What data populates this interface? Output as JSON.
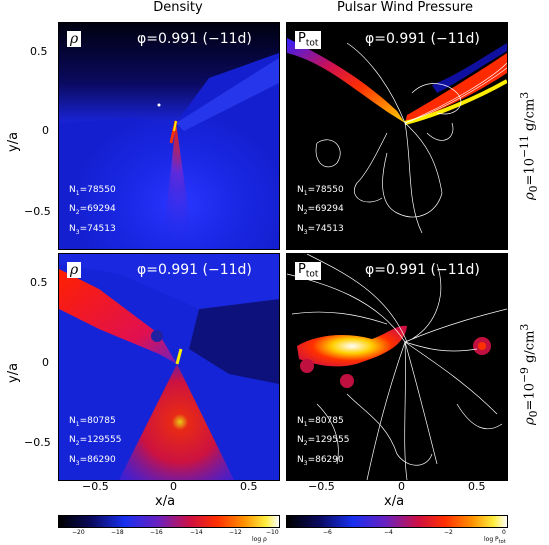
{
  "columns": {
    "left_title": "Density",
    "right_title": "Pulsar Wind Pressure"
  },
  "panels": [
    {
      "label": "ρ",
      "phase": "φ=0.991 (−11d)",
      "n1": "78550",
      "n2": "69294",
      "n3": "74513"
    },
    {
      "label": "P",
      "label_sub": "tot",
      "phase": "φ=0.991 (−11d)",
      "n1": "78550",
      "n2": "69294",
      "n3": "74513"
    },
    {
      "label": "ρ",
      "phase": "φ=0.991 (−11d)",
      "n1": "80785",
      "n2": "129555",
      "n3": "86290"
    },
    {
      "label": "P",
      "label_sub": "tot",
      "phase": "φ=0.991 (−11d)",
      "n1": "80785",
      "n2": "129555",
      "n3": "86290"
    }
  ],
  "row_labels": [
    {
      "base": "ρ",
      "sub": "0",
      "mid": "=10",
      "exp": "−11",
      "unit": " g/cm",
      "unit_exp": "3"
    },
    {
      "base": "ρ",
      "sub": "0",
      "mid": "=10",
      "exp": "−9",
      "unit": " g/cm",
      "unit_exp": "3"
    }
  ],
  "axes": {
    "xlabel": "x/a",
    "ylabel": "y/a",
    "x_ticks": [
      "−0.5",
      "0",
      "0.5"
    ],
    "y_ticks": [
      "0.5",
      "0",
      "−0.5"
    ]
  },
  "colorbars": {
    "left": {
      "ticks": [
        "−20",
        "−18",
        "−16",
        "−14",
        "−12",
        "−10"
      ],
      "label": "log ρ"
    },
    "right": {
      "ticks": [
        "−6",
        "−4",
        "−2",
        "0"
      ],
      "label": "log P",
      "label_sub": "tot"
    }
  },
  "n_labels": {
    "n1": "N",
    "n2": "N",
    "n3": "N",
    "s1": "1",
    "s2": "2",
    "s3": "3"
  },
  "colors": {
    "deep_blue": "#0a14c8",
    "black": "#000000",
    "red": "#ff1a00",
    "yellow": "#ffe400"
  }
}
